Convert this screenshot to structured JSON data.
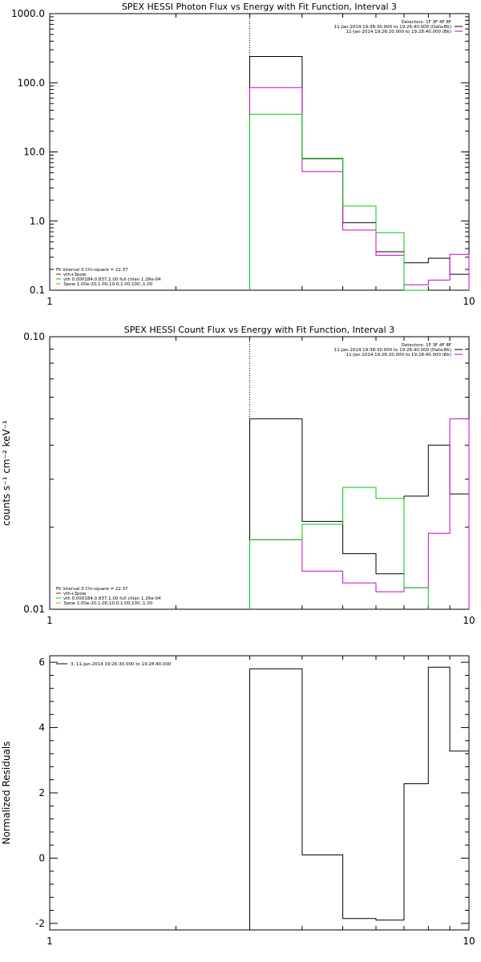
{
  "colors": {
    "black": "#000000",
    "magenta": "#cc00cc",
    "green": "#00c800",
    "orange": "#d08000",
    "red": "#cc0000"
  },
  "chart_data": [
    {
      "type": "line",
      "title": "SPEX HESSI Photon Flux vs Energy with Fit Function, Interval 3",
      "xscale": "log",
      "yscale": "log",
      "xlim": [
        1,
        10
      ],
      "ylim": [
        0.1,
        1000
      ],
      "ylabel": "",
      "xticks": [
        {
          "v": 1,
          "label": "1"
        },
        {
          "v": 10,
          "label": "10"
        }
      ],
      "yticks": [
        {
          "v": 0.1,
          "label": "0.1"
        },
        {
          "v": 1,
          "label": "1.0"
        },
        {
          "v": 10,
          "label": "10.0"
        },
        {
          "v": 100,
          "label": "100.0"
        },
        {
          "v": 1000,
          "label": "1000.0"
        }
      ],
      "dotted_x": 3,
      "legend_top": {
        "lines": [
          {
            "text": "Detectors: 1F 3F 4F 8F",
            "color": ""
          },
          {
            "text": "11-Jan-2014 19:38:30.000 to 19:26:40.000 (Data-Bk)",
            "color": "black"
          },
          {
            "text": "11-Jan-2014 19:26:20.000 to 19:28:40.000 (Bk)",
            "color": "magenta"
          }
        ]
      },
      "legend_bottom": {
        "lines": [
          {
            "text": "Fit Interval 3   Chi-square = 22.37",
            "color": ""
          },
          {
            "text": "vth+3pow",
            "color": "red"
          },
          {
            "text": "vth 0.000184,0.837,1.00  full chian 1.26e-04",
            "color": "green"
          },
          {
            "text": "3pow 1.00e-20,1.00,10.0,1.00,100.,1.00",
            "color": "orange"
          }
        ]
      },
      "series": [
        {
          "color": "black",
          "edges": [
            3,
            4,
            5,
            6,
            7,
            8,
            9,
            10
          ],
          "values": [
            240,
            8.0,
            0.95,
            0.36,
            0.25,
            0.29,
            0.17
          ]
        },
        {
          "color": "magenta",
          "edges": [
            3,
            4,
            5,
            6,
            7,
            8,
            9,
            10
          ],
          "values": [
            85,
            5.2,
            0.74,
            0.32,
            0.12,
            0.14,
            0.33
          ]
        },
        {
          "color": "green",
          "edges": [
            3,
            4,
            5,
            6,
            7,
            8
          ],
          "values": [
            35,
            8.1,
            1.65,
            0.68,
            0.1
          ]
        }
      ]
    },
    {
      "type": "line",
      "title": "SPEX HESSI Count Flux vs Energy with Fit Function, Interval 3",
      "xscale": "log",
      "yscale": "log",
      "xlim": [
        1,
        10
      ],
      "ylim": [
        0.01,
        0.1
      ],
      "ylabel": "counts s⁻¹ cm⁻² keV⁻¹",
      "xticks": [
        {
          "v": 1,
          "label": "1"
        },
        {
          "v": 10,
          "label": "10"
        }
      ],
      "yticks": [
        {
          "v": 0.01,
          "label": "0.01"
        },
        {
          "v": 0.1,
          "label": "0.10"
        }
      ],
      "dotted_x": 3,
      "legend_top": {
        "lines": [
          {
            "text": "Detectors: 1F 3F 4F 8F",
            "color": ""
          },
          {
            "text": "11-Jan-2014 19:38:30.000 to 19:26:40.000 (Data-Bk)",
            "color": "black"
          },
          {
            "text": "11-Jan-2014 19:26:20.000 to 19:28:40.000 (Bk)",
            "color": "magenta"
          }
        ]
      },
      "legend_bottom": {
        "lines": [
          {
            "text": "Fit Interval 3   Chi-square = 22.37",
            "color": ""
          },
          {
            "text": "vth+3pow",
            "color": "red"
          },
          {
            "text": "vth 0.000184,0.837,1.00  full chian 1.26e-04",
            "color": "green"
          },
          {
            "text": "3pow 1.00e-20,1.00,10.0,1.00,100.,1.00",
            "color": "orange"
          }
        ]
      },
      "series": [
        {
          "color": "black",
          "edges": [
            3,
            4,
            5,
            6,
            7,
            8,
            9,
            10
          ],
          "values": [
            0.05,
            0.021,
            0.016,
            0.0135,
            0.026,
            0.04,
            0.0265
          ]
        },
        {
          "color": "magenta",
          "edges": [
            3,
            4,
            5,
            6,
            7,
            8,
            9,
            10
          ],
          "values": [
            0.018,
            0.0138,
            0.0125,
            0.0116,
            0.012,
            0.019,
            0.05
          ]
        },
        {
          "color": "green",
          "edges": [
            3,
            4,
            5,
            6,
            7,
            8
          ],
          "values": [
            0.018,
            0.0205,
            0.028,
            0.0255,
            0.012
          ]
        }
      ]
    },
    {
      "type": "line",
      "title": "",
      "xscale": "log",
      "yscale": "linear",
      "xlim": [
        1,
        10
      ],
      "ylim": [
        -2.2,
        6.2
      ],
      "ylabel": "Normalized Residuals",
      "xticks": [
        {
          "v": 1,
          "label": "1"
        },
        {
          "v": 10,
          "label": "10"
        }
      ],
      "yticks": [
        {
          "v": -2,
          "label": "-2"
        },
        {
          "v": 0,
          "label": "0"
        },
        {
          "v": 2,
          "label": "2"
        },
        {
          "v": 4,
          "label": "4"
        },
        {
          "v": 6,
          "label": "6"
        }
      ],
      "legend_top": {
        "lines": [
          {
            "text": "3, 11-Jan-2014 19:26:30.000 to 19:28:40.000",
            "color": "black"
          }
        ]
      },
      "series": [
        {
          "color": "black",
          "edges": [
            3,
            4,
            5,
            6,
            7,
            8,
            9,
            10
          ],
          "values": [
            5.8,
            0.1,
            -1.85,
            -1.9,
            2.28,
            5.85,
            3.28
          ]
        }
      ]
    }
  ]
}
